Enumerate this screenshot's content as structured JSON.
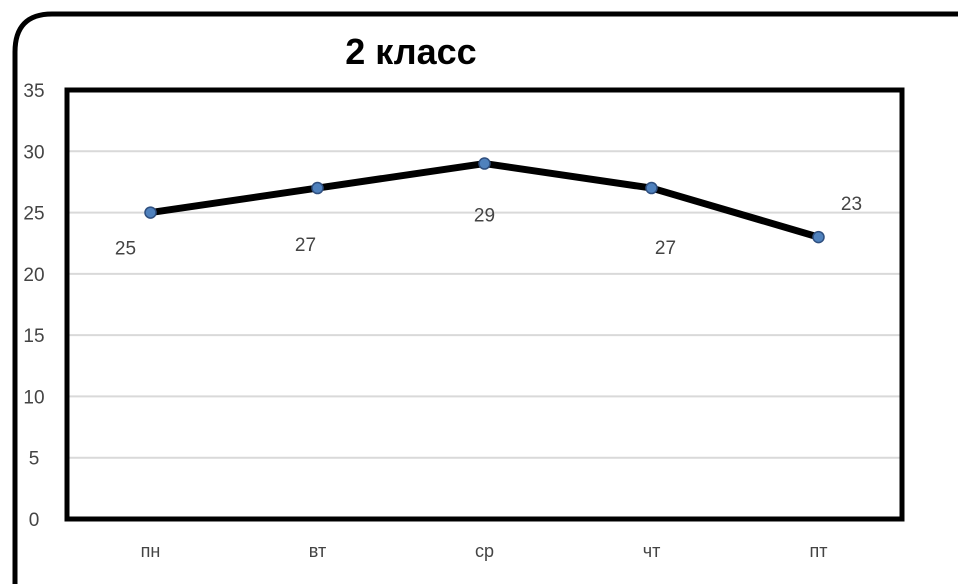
{
  "chart_data": {
    "type": "line",
    "title": "2 класс",
    "xlabel": "",
    "ylabel": "",
    "categories": [
      "пн",
      "вт",
      "ср",
      "чт",
      "пт"
    ],
    "series": [
      {
        "values": [
          25,
          27,
          29,
          27,
          23
        ],
        "color": "#000000",
        "marker_color": "#4f81bd"
      }
    ],
    "data_labels": [
      "25",
      "27",
      "29",
      "27",
      "23"
    ],
    "ylim": [
      0,
      35
    ],
    "y_ticks": [
      0,
      5,
      10,
      15,
      20,
      25,
      30,
      35
    ],
    "grid": true,
    "legend": "none"
  }
}
